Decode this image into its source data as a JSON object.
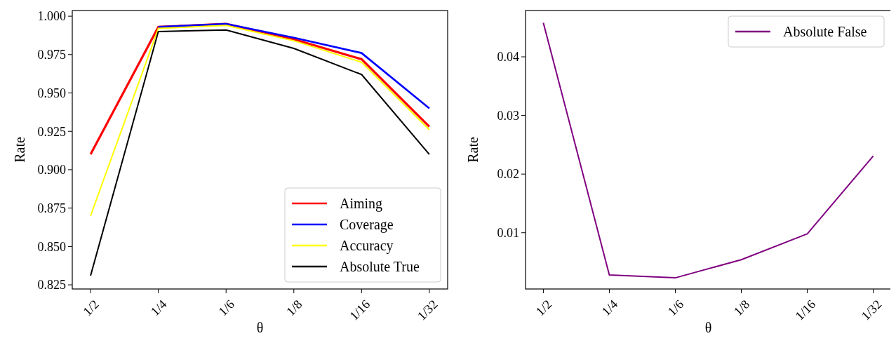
{
  "chart_data": [
    {
      "type": "line",
      "xlabel": "θ",
      "ylabel": "Rate",
      "categories": [
        "1/2",
        "1/4",
        "1/6",
        "1/8",
        "1/16",
        "1/32"
      ],
      "ylim": [
        0.8223,
        1.0037
      ],
      "yticks": [
        {
          "value": 0.825,
          "label": "0.825"
        },
        {
          "value": 0.85,
          "label": "0.850"
        },
        {
          "value": 0.875,
          "label": "0.875"
        },
        {
          "value": 0.9,
          "label": "0.900"
        },
        {
          "value": 0.925,
          "label": "0.925"
        },
        {
          "value": 0.95,
          "label": "0.950"
        },
        {
          "value": 0.975,
          "label": "0.975"
        },
        {
          "value": 1.0,
          "label": "1.000"
        }
      ],
      "legend": "bottom right",
      "grid": false,
      "series": [
        {
          "name": "Aiming",
          "color": "#ff0000",
          "values": [
            0.91,
            0.993,
            0.995,
            0.985,
            0.972,
            0.928
          ]
        },
        {
          "name": "Coverage",
          "color": "#0000ff",
          "values": [
            null,
            0.993,
            0.995,
            0.986,
            0.976,
            0.94
          ]
        },
        {
          "name": "Accuracy",
          "color": "#ffff00",
          "values": [
            0.87,
            0.992,
            0.994,
            0.984,
            0.97,
            0.926
          ]
        },
        {
          "name": "Absolute True",
          "color": "#000000",
          "values": [
            0.831,
            0.99,
            0.991,
            0.979,
            0.962,
            0.91
          ]
        }
      ]
    },
    {
      "type": "line",
      "xlabel": "θ",
      "ylabel": "Rate",
      "categories": [
        "1/2",
        "1/4",
        "1/6",
        "1/8",
        "1/16",
        "1/32"
      ],
      "ylim": [
        0.0004,
        0.0479
      ],
      "yticks": [
        {
          "value": 0.01,
          "label": "0.01"
        },
        {
          "value": 0.02,
          "label": "0.02"
        },
        {
          "value": 0.03,
          "label": "0.03"
        },
        {
          "value": 0.04,
          "label": "0.04"
        }
      ],
      "legend": "top right",
      "grid": false,
      "series": [
        {
          "name": "Absolute False",
          "color": "#800080",
          "values": [
            0.0458,
            0.0028,
            0.0023,
            0.0054,
            0.0098,
            0.0231
          ]
        }
      ]
    }
  ]
}
